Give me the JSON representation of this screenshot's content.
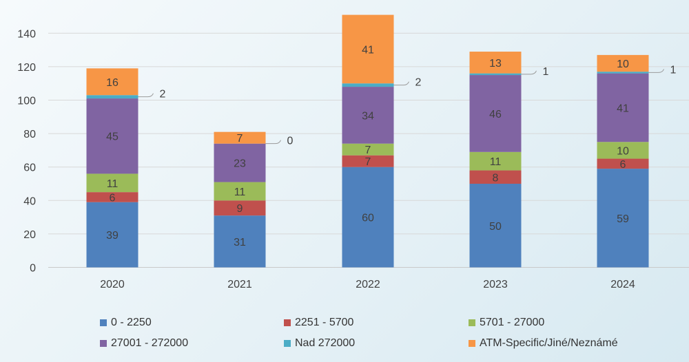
{
  "chart_data": {
    "type": "bar",
    "stacked": true,
    "categories": [
      "2020",
      "2021",
      "2022",
      "2023",
      "2024"
    ],
    "ylim": [
      0,
      150
    ],
    "yticks": [
      0,
      20,
      40,
      60,
      80,
      100,
      120,
      140
    ],
    "grid": true,
    "legend_position": "bottom",
    "series": [
      {
        "name": "0 - 2250",
        "color": "#4f81bd",
        "values": [
          39,
          31,
          60,
          50,
          59
        ]
      },
      {
        "name": "2251 - 5700",
        "color": "#c0504d",
        "values": [
          6,
          9,
          7,
          8,
          6
        ]
      },
      {
        "name": "5701 - 27000",
        "color": "#9bbb59",
        "values": [
          11,
          11,
          7,
          11,
          10
        ]
      },
      {
        "name": "27001 - 272000",
        "color": "#8064a2",
        "values": [
          45,
          23,
          34,
          46,
          41
        ]
      },
      {
        "name": "Nad 272000",
        "color": "#4bacc6",
        "values": [
          2,
          0,
          2,
          1,
          1
        ]
      },
      {
        "name": "ATM-Specific/Jiné/Neznámé",
        "color": "#f79646",
        "values": [
          16,
          7,
          41,
          13,
          10
        ]
      }
    ]
  }
}
